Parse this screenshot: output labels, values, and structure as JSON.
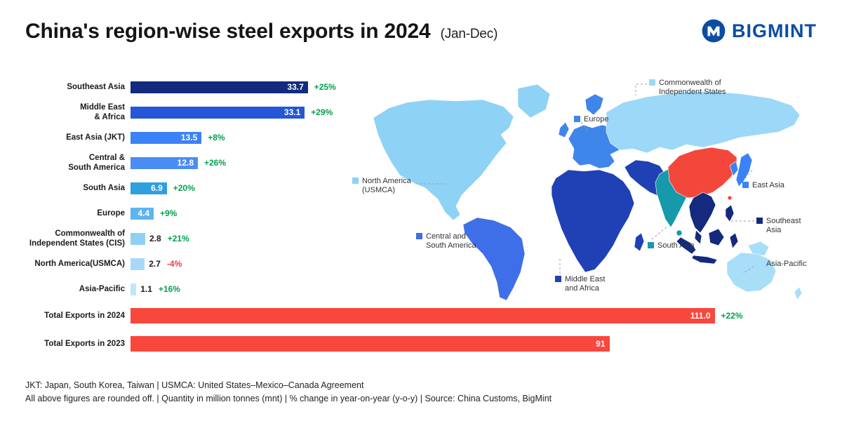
{
  "header": {
    "title": "China's region-wise steel exports in 2024",
    "subtitle": "(Jan-Dec)",
    "brand": "BIGMINT",
    "brand_color": "#0c4da2"
  },
  "chart_data": {
    "type": "bar",
    "orientation": "horizontal",
    "title": "China's region-wise steel exports in 2024 (Jan-Dec)",
    "unit": "million tonnes (mnt)",
    "grid": false,
    "legend_position": "none",
    "categories": [
      "Southeast Asia",
      "Middle East\n& Africa",
      "East Asia (JKT)",
      "Central &\nSouth America",
      "South Asia",
      "Europe",
      "Commonwealth of\nIndependent States (CIS)",
      "North America(USMCA)",
      "Asia-Pacific"
    ],
    "values": [
      33.7,
      33.1,
      13.5,
      12.8,
      6.9,
      4.4,
      2.8,
      2.7,
      1.1
    ],
    "value_labels": [
      "33.7",
      "33.1",
      "13.5",
      "12.8",
      "6.9",
      "4.4",
      "2.8",
      "2.7",
      "1.1"
    ],
    "yoy_changes": [
      "+25%",
      "+29%",
      "+8%",
      "+26%",
      "+20%",
      "+9%",
      "+21%",
      "-4%",
      "+16%"
    ],
    "bar_colors": [
      "#132a7e",
      "#2456d8",
      "#3b82f6",
      "#4a8cf5",
      "#2f9fe0",
      "#5cb4f0",
      "#8fd0f5",
      "#a6d9f7",
      "#bfe5fa"
    ],
    "totals": [
      {
        "label": "Total Exports in 2024",
        "value": 111.0,
        "value_label": "111.0",
        "change": "+22%",
        "color": "#f8473d"
      },
      {
        "label": "Total Exports in 2023",
        "value": 91,
        "value_label": "91",
        "change": "",
        "color": "#f8473d"
      }
    ],
    "positive_color": "#00a14b",
    "negative_color": "#e8413c"
  },
  "map": {
    "colors": {
      "north_america": "#8ed2f6",
      "central_south_america": "#3f6fe8",
      "europe": "#3f86ea",
      "cis": "#9cd8f7",
      "middle_east_africa": "#1f41b5",
      "south_asia": "#1799ac",
      "china": "#f4473c",
      "east_asia": "#3b82f6",
      "southeast_asia": "#132a7e",
      "asia_pacific": "#a8def8",
      "ocean": "#ffffff"
    },
    "labels": [
      {
        "text": "Commonwealth of\nIndependent States",
        "region": "cis"
      },
      {
        "text": "Europe",
        "region": "europe"
      },
      {
        "text": "North America\n(USMCA)",
        "region": "north_america"
      },
      {
        "text": "East Asia",
        "region": "east_asia"
      },
      {
        "text": "Southeast Asia",
        "region": "southeast_asia"
      },
      {
        "text": "Central and\nSouth America",
        "region": "central_south_america"
      },
      {
        "text": "South Asia",
        "region": "south_asia"
      },
      {
        "text": "Middle East\nand Africa",
        "region": "middle_east_africa"
      },
      {
        "text": "Asia-Pacific",
        "region": "asia_pacific"
      }
    ]
  },
  "footer": {
    "line1": "JKT: Japan, South Korea, Taiwan | USMCA: United States–Mexico–Canada Agreement",
    "line2": "All above figures are rounded off. | Quantity in million tonnes (mnt) | % change in year-on-year (y-o-y) | Source: China Customs, BigMint"
  }
}
